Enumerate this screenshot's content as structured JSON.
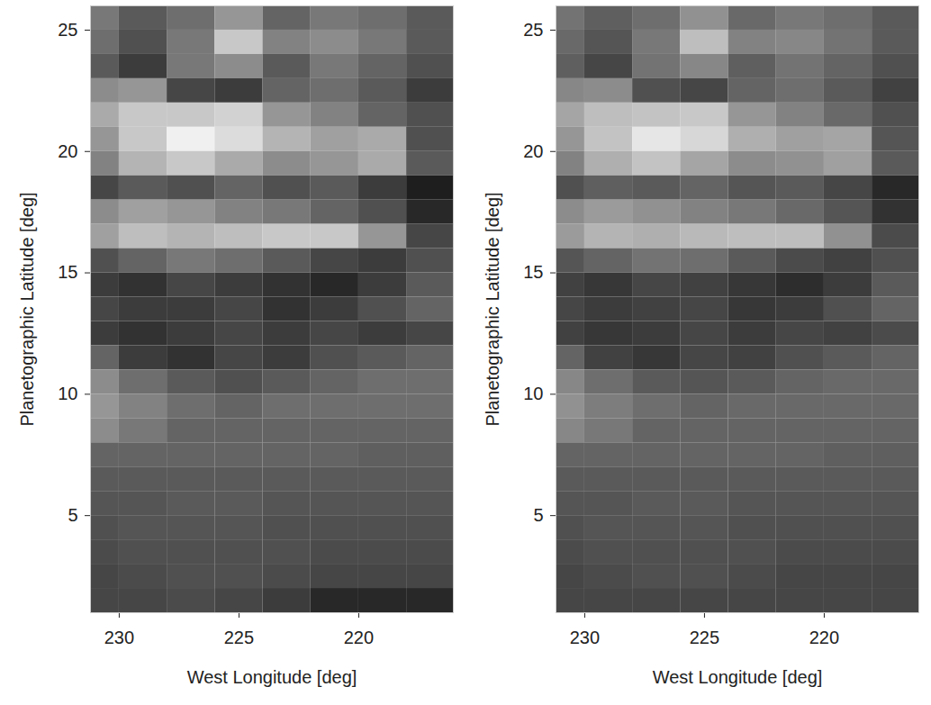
{
  "chart_data": [
    {
      "type": "heatmap",
      "xlabel": "West Longitude [deg]",
      "ylabel": "Planetographic Latitude [deg]",
      "xlim": [
        231.2,
        216.05
      ],
      "ylim": [
        1,
        26
      ],
      "xticks": [
        230,
        225,
        220
      ],
      "yticks": [
        5,
        10,
        15,
        20,
        25
      ],
      "cells": {
        "lon_edges": [
          232,
          230,
          228,
          226,
          224,
          222,
          220,
          218,
          216
        ],
        "lat_edges": [
          26,
          25,
          24,
          23,
          22,
          21,
          20,
          19,
          18,
          17,
          16,
          15,
          14,
          13,
          12,
          11,
          10,
          9,
          8,
          7,
          6,
          5,
          4,
          3,
          2,
          1
        ],
        "values": [
          [
            120,
            90,
            110,
            150,
            100,
            120,
            110,
            90
          ],
          [
            110,
            80,
            120,
            200,
            130,
            140,
            120,
            90
          ],
          [
            90,
            60,
            120,
            140,
            90,
            120,
            100,
            80
          ],
          [
            140,
            150,
            70,
            60,
            100,
            110,
            90,
            60
          ],
          [
            170,
            200,
            200,
            210,
            150,
            130,
            100,
            80
          ],
          [
            150,
            200,
            240,
            220,
            180,
            160,
            170,
            80
          ],
          [
            130,
            180,
            200,
            170,
            140,
            150,
            170,
            90
          ],
          [
            70,
            90,
            80,
            100,
            80,
            90,
            60,
            30
          ],
          [
            140,
            160,
            150,
            130,
            120,
            100,
            80,
            40
          ],
          [
            160,
            190,
            180,
            190,
            200,
            200,
            150,
            70
          ],
          [
            80,
            100,
            120,
            110,
            90,
            70,
            60,
            80
          ],
          [
            60,
            50,
            70,
            60,
            50,
            40,
            60,
            90
          ],
          [
            70,
            60,
            60,
            70,
            50,
            60,
            80,
            100
          ],
          [
            60,
            50,
            60,
            70,
            60,
            70,
            60,
            70
          ],
          [
            100,
            60,
            50,
            70,
            60,
            80,
            90,
            100
          ],
          [
            140,
            110,
            90,
            80,
            90,
            100,
            110,
            110
          ],
          [
            150,
            130,
            110,
            100,
            110,
            110,
            110,
            110
          ],
          [
            140,
            120,
            100,
            100,
            100,
            100,
            100,
            100
          ],
          [
            100,
            100,
            100,
            100,
            100,
            100,
            95,
            95
          ],
          [
            90,
            90,
            90,
            90,
            90,
            90,
            90,
            90
          ],
          [
            85,
            85,
            90,
            90,
            85,
            85,
            85,
            85
          ],
          [
            80,
            85,
            85,
            85,
            80,
            80,
            80,
            80
          ],
          [
            75,
            80,
            80,
            80,
            80,
            75,
            75,
            75
          ],
          [
            70,
            75,
            80,
            80,
            75,
            70,
            70,
            70
          ],
          [
            70,
            70,
            75,
            70,
            60,
            40,
            40,
            40
          ]
        ]
      }
    },
    {
      "type": "heatmap",
      "xlabel": "West Longitude [deg]",
      "ylabel": "Planetographic Latitude [deg]",
      "xlim": [
        231.2,
        216.05
      ],
      "ylim": [
        1,
        26
      ],
      "xticks": [
        230,
        225,
        220
      ],
      "yticks": [
        5,
        10,
        15,
        20,
        25
      ],
      "cells": {
        "lon_edges": [
          232,
          230,
          228,
          226,
          224,
          222,
          220,
          218,
          216
        ],
        "lat_edges": [
          26,
          25,
          24,
          23,
          22,
          21,
          20,
          19,
          18,
          17,
          16,
          15,
          14,
          13,
          12,
          11,
          10,
          9,
          8,
          7,
          6,
          5,
          4,
          3,
          2,
          1
        ],
        "values": [
          [
            115,
            95,
            110,
            145,
            105,
            120,
            110,
            90
          ],
          [
            105,
            85,
            120,
            190,
            130,
            135,
            115,
            90
          ],
          [
            95,
            70,
            115,
            135,
            95,
            115,
            100,
            80
          ],
          [
            135,
            140,
            80,
            70,
            100,
            110,
            90,
            65
          ],
          [
            165,
            190,
            195,
            200,
            150,
            130,
            105,
            80
          ],
          [
            150,
            195,
            230,
            215,
            175,
            160,
            165,
            85
          ],
          [
            130,
            175,
            195,
            165,
            140,
            145,
            160,
            90
          ],
          [
            80,
            95,
            90,
            100,
            85,
            90,
            70,
            40
          ],
          [
            140,
            155,
            145,
            130,
            120,
            105,
            85,
            50
          ],
          [
            155,
            180,
            175,
            185,
            190,
            190,
            145,
            75
          ],
          [
            85,
            100,
            115,
            110,
            90,
            75,
            65,
            80
          ],
          [
            65,
            55,
            70,
            65,
            55,
            45,
            60,
            90
          ],
          [
            70,
            60,
            65,
            70,
            55,
            60,
            80,
            100
          ],
          [
            65,
            55,
            60,
            70,
            60,
            70,
            65,
            75
          ],
          [
            100,
            65,
            55,
            70,
            65,
            80,
            90,
            100
          ],
          [
            135,
            110,
            90,
            85,
            90,
            100,
            105,
            105
          ],
          [
            145,
            125,
            110,
            100,
            105,
            105,
            105,
            105
          ],
          [
            135,
            120,
            100,
            100,
            100,
            100,
            100,
            100
          ],
          [
            100,
            100,
            100,
            100,
            100,
            100,
            95,
            95
          ],
          [
            90,
            90,
            90,
            90,
            90,
            90,
            90,
            90
          ],
          [
            85,
            85,
            90,
            90,
            85,
            85,
            85,
            85
          ],
          [
            80,
            85,
            85,
            85,
            80,
            80,
            80,
            80
          ],
          [
            75,
            80,
            80,
            80,
            80,
            75,
            75,
            75
          ],
          [
            70,
            75,
            80,
            80,
            75,
            70,
            70,
            70
          ],
          [
            70,
            70,
            70,
            70,
            70,
            70,
            70,
            70
          ]
        ]
      }
    }
  ]
}
